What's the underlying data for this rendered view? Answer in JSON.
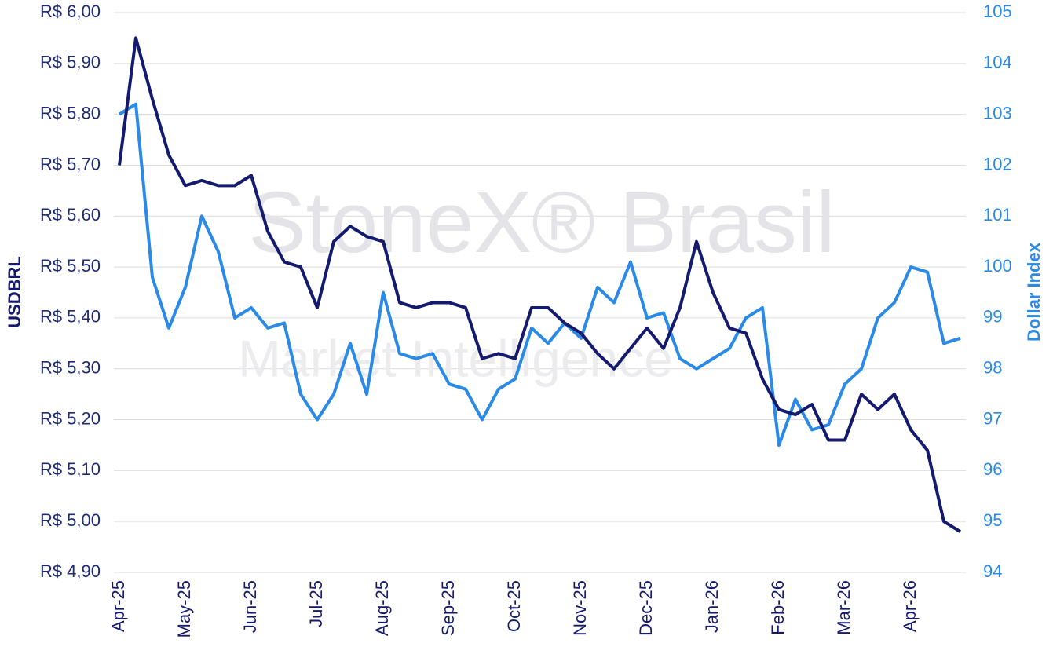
{
  "chart_data": {
    "type": "line",
    "watermark": "StoneX® Brasil",
    "watermark_subtitle": "Market Intelligence",
    "y_label": "USDBRL",
    "y2_label": "Dollar Index",
    "categories": [
      "Apr-25",
      null,
      null,
      null,
      "May-25",
      null,
      null,
      null,
      "Jun-25",
      null,
      null,
      null,
      "Jul-25",
      null,
      null,
      null,
      "Aug-25",
      null,
      null,
      null,
      "Sep-25",
      null,
      null,
      null,
      "Oct-25",
      null,
      null,
      null,
      "Nov-25",
      null,
      null,
      null,
      "Dec-25",
      null,
      null,
      null,
      "Jan-26",
      null,
      null,
      null,
      "Feb-26",
      null,
      null,
      null,
      "Mar-26",
      null,
      null,
      null,
      "Apr-26",
      null,
      null,
      null
    ],
    "series": [
      {
        "name": "USDBRL",
        "color": "#141a6e",
        "values": [
          5.7,
          5.95,
          5.83,
          5.72,
          5.66,
          5.67,
          5.66,
          5.66,
          5.68,
          5.57,
          5.51,
          5.5,
          5.42,
          5.55,
          5.58,
          5.56,
          5.55,
          5.43,
          5.42,
          5.43,
          5.43,
          5.42,
          5.32,
          5.33,
          5.32,
          5.42,
          5.42,
          5.39,
          5.37,
          5.33,
          5.3,
          5.34,
          5.38,
          5.34,
          5.42,
          5.55,
          5.45,
          5.38,
          5.37,
          5.28,
          5.22,
          5.21,
          5.23,
          5.16,
          5.16,
          5.25,
          5.22,
          5.25,
          5.18,
          5.14,
          5.0,
          4.98
        ]
      },
      {
        "name": "Dollar Index",
        "color": "#2b8ae6",
        "axis": "y2",
        "values": [
          103.0,
          103.2,
          99.8,
          98.8,
          99.6,
          101.0,
          100.3,
          99.0,
          99.2,
          98.8,
          98.9,
          97.5,
          97.0,
          97.5,
          98.5,
          97.5,
          99.5,
          98.3,
          98.2,
          98.3,
          97.7,
          97.6,
          97.0,
          97.6,
          97.8,
          98.8,
          98.5,
          98.9,
          98.6,
          99.6,
          99.3,
          100.1,
          99.0,
          99.1,
          98.2,
          98.0,
          98.2,
          98.4,
          99.0,
          99.2,
          96.5,
          97.4,
          96.8,
          96.9,
          97.7,
          98.0,
          99.0,
          99.3,
          100.0,
          99.9,
          98.5,
          98.6
        ]
      }
    ],
    "ylim": [
      4.9,
      6.0
    ],
    "yticks": [
      {
        "value": 4.9,
        "label": "R$ 4,90"
      },
      {
        "value": 5.0,
        "label": "R$ 5,00"
      },
      {
        "value": 5.1,
        "label": "R$ 5,10"
      },
      {
        "value": 5.2,
        "label": "R$ 5,20"
      },
      {
        "value": 5.3,
        "label": "R$ 5,30"
      },
      {
        "value": 5.4,
        "label": "R$ 5,40"
      },
      {
        "value": 5.5,
        "label": "R$ 5,50"
      },
      {
        "value": 5.6,
        "label": "R$ 5,60"
      },
      {
        "value": 5.7,
        "label": "R$ 5,70"
      },
      {
        "value": 5.8,
        "label": "R$ 5,80"
      },
      {
        "value": 5.9,
        "label": "R$ 5,90"
      },
      {
        "value": 6.0,
        "label": "R$ 6,00"
      }
    ],
    "y2lim": [
      94,
      105
    ],
    "y2ticks": [
      94,
      95,
      96,
      97,
      98,
      99,
      100,
      101,
      102,
      103,
      104,
      105
    ],
    "grid": true
  }
}
